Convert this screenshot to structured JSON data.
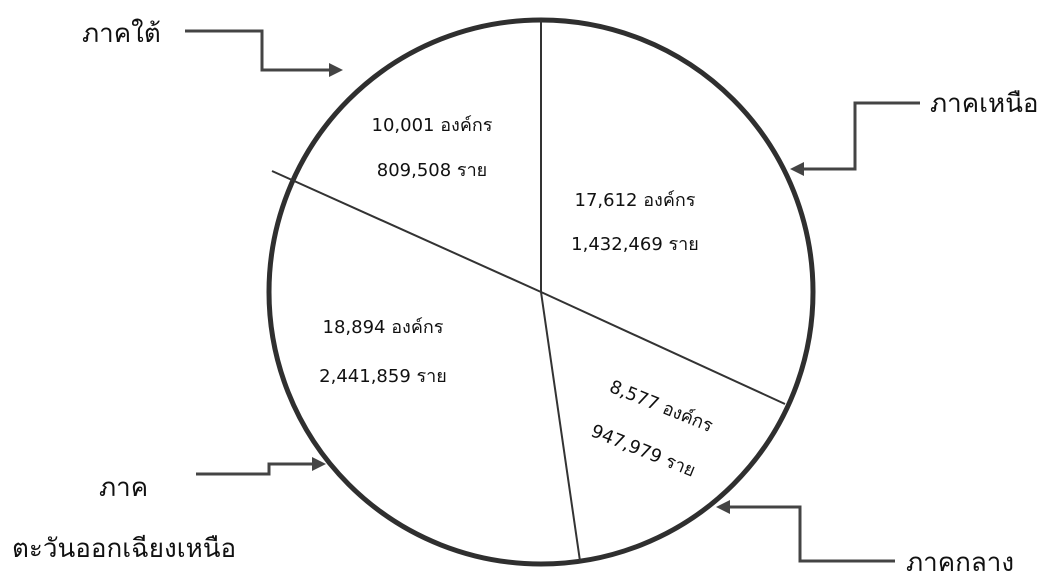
{
  "chart_data": {
    "type": "pie",
    "title": "",
    "slices": [
      {
        "region": "ภาคเหนือ",
        "organizations": 17612,
        "org_label": "17,612 องค์กร",
        "members_label": "1,432,469 ราย",
        "members": 1432469
      },
      {
        "region": "ภาคกลาง",
        "organizations": 8577,
        "org_label": "8,577 องค์กร",
        "members_label": "947,979 ราย",
        "members": 947979
      },
      {
        "region_lines": [
          "ภาค",
          "ตะวันออกเฉียงเหนือ"
        ],
        "organizations": 18894,
        "org_label": "18,894 องค์กร",
        "members_label": "2,441,859 ราย",
        "members": 2441859
      },
      {
        "region": "ภาคใต้",
        "organizations": 10001,
        "org_label": "10,001 องค์กร",
        "members_label": "809,508 ราย",
        "members": 809508
      }
    ],
    "colors": {
      "fill": "#ffffff",
      "outline": "#2f2f2f",
      "divider": "#333333",
      "arrow": "#444444"
    }
  }
}
